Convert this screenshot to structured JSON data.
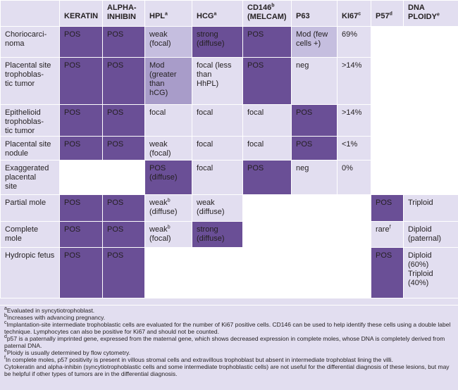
{
  "headers": {
    "corner": "",
    "keratin": "KERATIN",
    "alpha_inhibin": "ALPHA-INHIBIN",
    "hpl": "HPL",
    "hpl_sup": "a",
    "hcg": "HCG",
    "hcg_sup": "a",
    "cd146": "CD146",
    "cd146_sup": "b",
    "cd146_sub": "(MELCAM)",
    "p63": "P63",
    "ki67": "KI67",
    "ki67_sup": "c",
    "p57": "P57",
    "p57_sup": "d",
    "ploidy": "DNA PLOIDY",
    "ploidy_sup": "e"
  },
  "rows": [
    {
      "label": "Choriocarci-\nnoma",
      "keratin": "POS",
      "alpha": "POS",
      "hpl": "weak\n(focal)",
      "hcg": "strong\n(diffuse)",
      "cd146": "POS",
      "p63": "Mod (few\ncells +)",
      "ki67": "69%",
      "p57": "",
      "ploidy": ""
    },
    {
      "label": "Placental site\ntrophoblas-\ntic tumor",
      "keratin": "POS",
      "alpha": "POS",
      "hpl": "Mod\n(greater\nthan\nhCG)",
      "hcg": "focal (less\nthan\nHhPL)",
      "cd146": "POS",
      "p63": "neg",
      "ki67": ">14%",
      "p57": "",
      "ploidy": ""
    },
    {
      "label": "Epithelioid\ntrophoblas-\ntic tumor",
      "keratin": "POS",
      "alpha": "POS",
      "hpl": "focal",
      "hcg": "focal",
      "cd146": "focal",
      "p63": "POS",
      "ki67": ">14%",
      "p57": "",
      "ploidy": ""
    },
    {
      "label": "Placental site\nnodule",
      "keratin": "POS",
      "alpha": "POS",
      "hpl": "weak\n(focal)",
      "hcg": "focal",
      "cd146": "focal",
      "p63": "POS",
      "ki67": "<1%",
      "p57": "",
      "ploidy": ""
    },
    {
      "label": "Exaggerated\nplacental\nsite",
      "keratin": "",
      "alpha": "",
      "hpl": "POS\n(diffuse)",
      "hcg": "focal",
      "cd146": "POS",
      "p63": "neg",
      "ki67": "0%",
      "p57": "",
      "ploidy": ""
    },
    {
      "label": "Partial mole",
      "keratin": "POS",
      "alpha": "POS",
      "hpl": "weak",
      "hpl_sup": "b",
      "hpl_rest": "\n(diffuse)",
      "hcg": "weak\n(diffuse)",
      "cd146": "",
      "p63": "",
      "ki67": "",
      "p57": "POS",
      "ploidy": "Triploid"
    },
    {
      "label": "Complete\nmole",
      "keratin": "POS",
      "alpha": "POS",
      "hpl": "weak",
      "hpl_sup": "b",
      "hpl_rest": "\n(focal)",
      "hcg": "strong\n(diffuse)",
      "cd146": "",
      "p63": "",
      "ki67": "",
      "p57": "rare",
      "p57_sup": "f",
      "ploidy": "Diploid\n(paternal)"
    },
    {
      "label": "Hydropic fetus",
      "keratin": "POS",
      "alpha": "POS",
      "hpl": "",
      "hcg": "",
      "cd146": "",
      "p63": "",
      "ki67": "",
      "p57": "POS",
      "ploidy": "Diploid\n(60%)\nTriploid\n(40%)"
    }
  ],
  "footnotes": {
    "a_mark": "a",
    "a": "Evaluated in syncytiotrophoblast.",
    "b_mark": "b",
    "b": "Increases with advancing pregnancy.",
    "c_mark": "c",
    "c": "Implantation-site intermediate trophoblastic cells are evaluated for the number of Ki67 positive cells. CD146 can be used to help identify these cells using a double label technique. Lymphocytes can also be positive for Ki67 and should not be counted.",
    "d_mark": "d",
    "d": "p57 is a paternally imprinted gene, expressed from the maternal gene, which shows decreased expression in complete moles, whose DNA is completely derived from paternal DNA.",
    "e_mark": "e",
    "e": "Ploidy is usually determined by flow cytometry.",
    "f_mark": "f",
    "f": "In complete moles, p57 positivity is present in villous stromal cells and extravillous trophoblast but absent in intermediate trophoblast lining the villi.",
    "g": "Cytokeratin and alpha-inhibin (syncytiotrophoblastic cells and some intermediate trophoblastic cells) are not useful for the differential diagnosis of these lesions, but may be helpful if other types of tumors are in the differential diagnosis."
  },
  "colors": {
    "light": "#e2def0",
    "mid": "#c5bedf",
    "lavender": "#a89cc9",
    "dark": "#6a4f96",
    "white": "#ffffff"
  }
}
